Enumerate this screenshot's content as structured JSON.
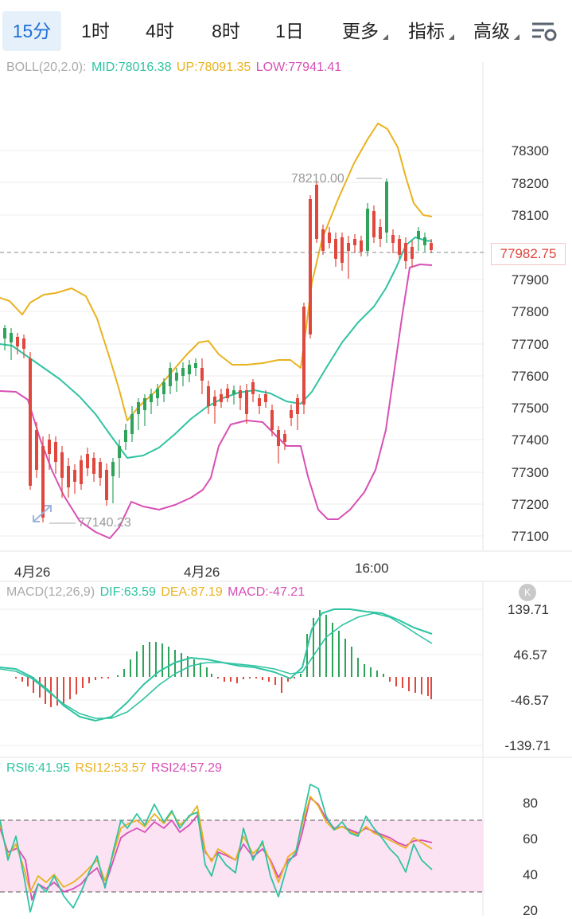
{
  "toolbar": {
    "tabs": [
      {
        "label": "15分",
        "active": true
      },
      {
        "label": "1时"
      },
      {
        "label": "4时"
      },
      {
        "label": "8时"
      },
      {
        "label": "1日"
      },
      {
        "label": "更多",
        "dropdown": true
      },
      {
        "label": "指标",
        "dropdown": true
      },
      {
        "label": "高级",
        "dropdown": true
      }
    ],
    "settings_icon": "chart-settings-icon"
  },
  "boll": {
    "label": "BOLL(20,2.0):",
    "mid": "MID:78016.38",
    "up": "UP:78091.35",
    "low": "LOW:77941.41",
    "colors": {
      "label": "#aaaaaa",
      "mid": "#2fc3a2",
      "up": "#e9b21f",
      "low": "#d84fb5"
    }
  },
  "price_axis": [
    "78300",
    "78200",
    "78100",
    "77900",
    "77800",
    "77700",
    "77600",
    "77500",
    "77400",
    "77300",
    "77200",
    "77100"
  ],
  "current_price": "77982.75",
  "high_annotation": "78210.00",
  "low_annotation": "77140.23",
  "date_axis": [
    "4月26",
    "4月26",
    "16:00"
  ],
  "macd": {
    "label": "MACD(12,26,9)",
    "dif": "DIF:63.59",
    "dea": "DEA:87.19",
    "macd": "MACD:-47.21",
    "axis": [
      "139.71",
      "46.57",
      "-46.57",
      "-139.71"
    ],
    "badge": "K"
  },
  "rsi": {
    "rsi6": "RSI6:41.95",
    "rsi12": "RSI12:53.57",
    "rsi24": "RSI24:57.29",
    "axis": [
      "80",
      "60",
      "40",
      "20"
    ]
  },
  "colors": {
    "up": "#2fa35a",
    "down": "#e0473d",
    "teal": "#2fc3a2",
    "gold": "#e9b21f",
    "magenta": "#d84fb5",
    "rsi_band": "#fbe3f3"
  }
}
